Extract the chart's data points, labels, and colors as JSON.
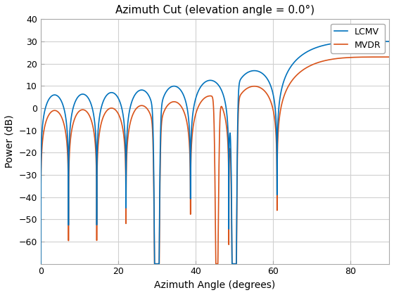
{
  "title": "Azimuth Cut (elevation angle = 0.0°)",
  "xlabel": "Azimuth Angle (degrees)",
  "ylabel": "Power (dB)",
  "xlim": [
    0,
    90
  ],
  "ylim": [
    -70,
    40
  ],
  "yticks": [
    -60,
    -50,
    -40,
    -30,
    -20,
    -10,
    0,
    10,
    20,
    30,
    40
  ],
  "xticks": [
    0,
    20,
    40,
    60,
    80
  ],
  "lcmv_color": "#0072BD",
  "mvdr_color": "#D95319",
  "background_color": "#ffffff",
  "grid_color": "#d0d0d0",
  "legend_labels": [
    "LCMV",
    "MVDR"
  ]
}
